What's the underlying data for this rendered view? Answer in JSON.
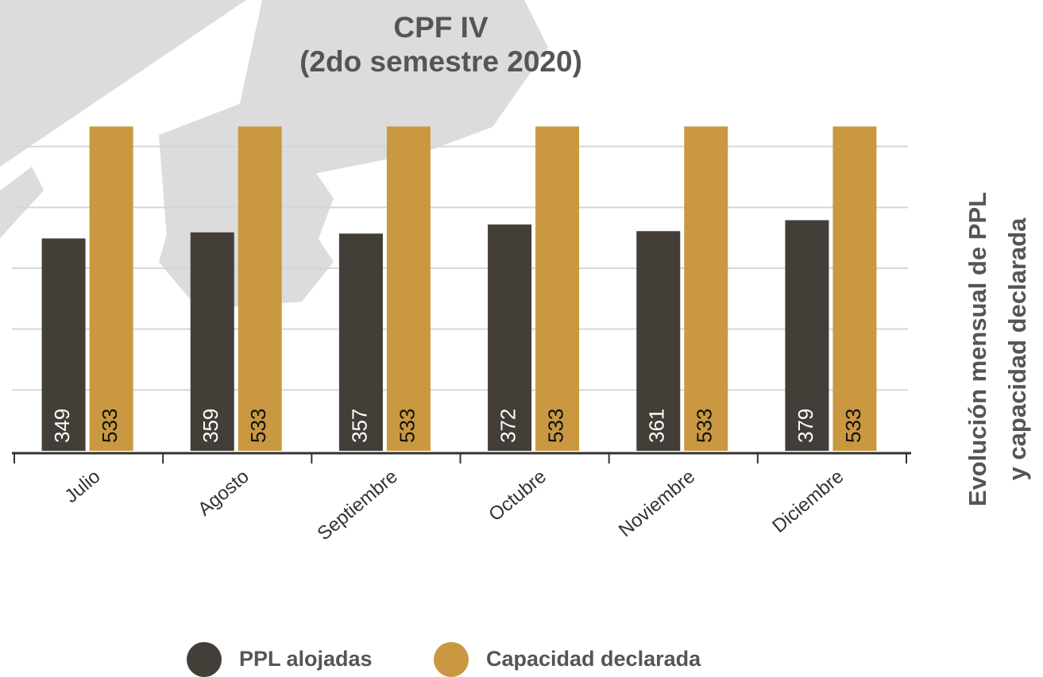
{
  "chart_data": {
    "type": "bar",
    "title": [
      "CPF IV",
      "(2do semestre 2020)"
    ],
    "side_title": [
      "Evolución mensual de PPL",
      "y capacidad declarada"
    ],
    "categories": [
      "Julio",
      "Agosto",
      "Septiembre",
      "Octubre",
      "Noviembre",
      "Diciembre"
    ],
    "series": [
      {
        "name": "PPL alojadas",
        "color": "#433f38",
        "values": [
          349,
          359,
          357,
          372,
          361,
          379
        ]
      },
      {
        "name": "Capacidad declarada",
        "color": "#c99840",
        "values": [
          533,
          533,
          533,
          533,
          533,
          533
        ]
      }
    ],
    "ylim": [
      0,
      600
    ],
    "yticks": [
      100,
      200,
      300,
      400,
      500
    ],
    "grid": true
  }
}
